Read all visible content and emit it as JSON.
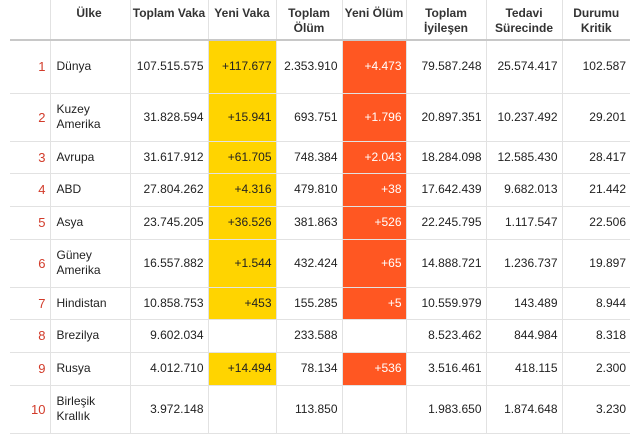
{
  "colors": {
    "new_case_highlight": "#ffd400",
    "new_death_highlight": "#ff5722",
    "index_color": "#d23b2a"
  },
  "headers": {
    "idx": "",
    "country": "Ülke",
    "total_cases": "Toplam Vaka",
    "new_cases": "Yeni Vaka",
    "total_deaths": "Toplam Ölüm",
    "new_deaths": "Yeni Ölüm",
    "total_recovered": "Toplam İyileşen",
    "active": "Tedavi Sürecinde",
    "critical": "Durumu Kritik"
  },
  "rows": [
    {
      "idx": "1",
      "country": "Dünya",
      "total_cases": "107.515.575",
      "new_cases": "+117.677",
      "total_deaths": "2.353.910",
      "new_deaths": "+4.473",
      "total_recovered": "79.587.248",
      "active": "25.574.417",
      "critical": "102.587"
    },
    {
      "idx": "2",
      "country": "Kuzey Amerika",
      "total_cases": "31.828.594",
      "new_cases": "+15.941",
      "total_deaths": "693.751",
      "new_deaths": "+1.796",
      "total_recovered": "20.897.351",
      "active": "10.237.492",
      "critical": "29.201"
    },
    {
      "idx": "3",
      "country": "Avrupa",
      "total_cases": "31.617.912",
      "new_cases": "+61.705",
      "total_deaths": "748.384",
      "new_deaths": "+2.043",
      "total_recovered": "18.284.098",
      "active": "12.585.430",
      "critical": "28.417"
    },
    {
      "idx": "4",
      "country": "ABD",
      "total_cases": "27.804.262",
      "new_cases": "+4.316",
      "total_deaths": "479.810",
      "new_deaths": "+38",
      "total_recovered": "17.642.439",
      "active": "9.682.013",
      "critical": "21.442"
    },
    {
      "idx": "5",
      "country": "Asya",
      "total_cases": "23.745.205",
      "new_cases": "+36.526",
      "total_deaths": "381.863",
      "new_deaths": "+526",
      "total_recovered": "22.245.795",
      "active": "1.117.547",
      "critical": "22.506"
    },
    {
      "idx": "6",
      "country": "Güney Amerika",
      "total_cases": "16.557.882",
      "new_cases": "+1.544",
      "total_deaths": "432.424",
      "new_deaths": "+65",
      "total_recovered": "14.888.721",
      "active": "1.236.737",
      "critical": "19.897"
    },
    {
      "idx": "7",
      "country": "Hindistan",
      "total_cases": "10.858.753",
      "new_cases": "+453",
      "total_deaths": "155.285",
      "new_deaths": "+5",
      "total_recovered": "10.559.979",
      "active": "143.489",
      "critical": "8.944"
    },
    {
      "idx": "8",
      "country": "Brezilya",
      "total_cases": "9.602.034",
      "new_cases": "",
      "total_deaths": "233.588",
      "new_deaths": "",
      "total_recovered": "8.523.462",
      "active": "844.984",
      "critical": "8.318"
    },
    {
      "idx": "9",
      "country": "Rusya",
      "total_cases": "4.012.710",
      "new_cases": "+14.494",
      "total_deaths": "78.134",
      "new_deaths": "+536",
      "total_recovered": "3.516.461",
      "active": "418.115",
      "critical": "2.300"
    },
    {
      "idx": "10",
      "country": "Birleşik Krallık",
      "total_cases": "3.972.148",
      "new_cases": "",
      "total_deaths": "113.850",
      "new_deaths": "",
      "total_recovered": "1.983.650",
      "active": "1.874.648",
      "critical": "3.230"
    }
  ]
}
